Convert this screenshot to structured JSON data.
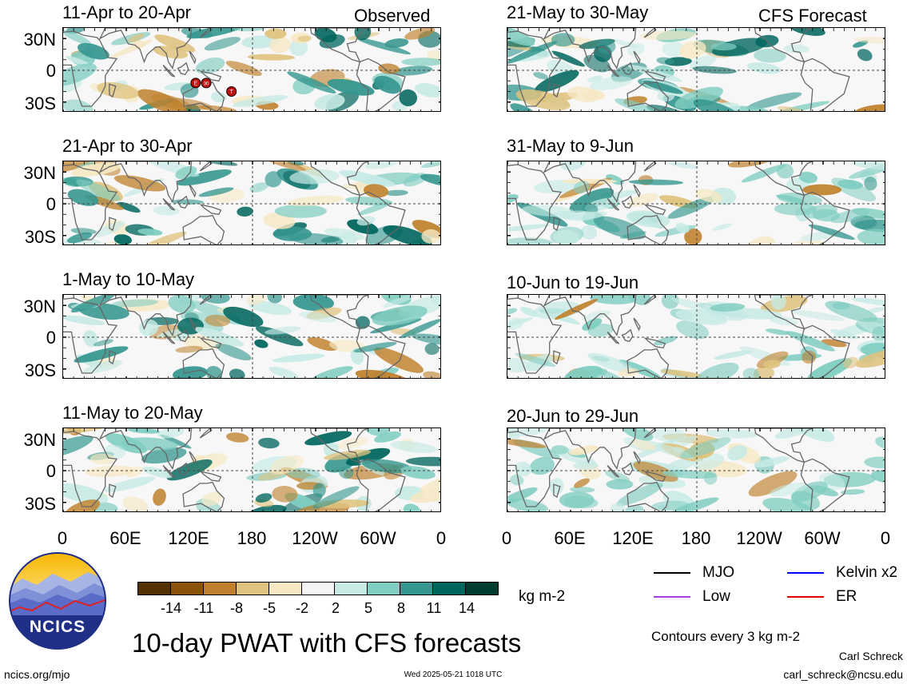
{
  "header": {
    "observed_label": "Observed",
    "forecast_label": "CFS Forecast"
  },
  "panels": [
    {
      "title": "11-Apr to 20-Apr",
      "column": "observed"
    },
    {
      "title": "21-Apr to 30-Apr",
      "column": "observed"
    },
    {
      "title": "1-May to 10-May",
      "column": "observed"
    },
    {
      "title": "11-May to 20-May",
      "column": "observed"
    },
    {
      "title": "21-May to 30-May",
      "column": "forecast"
    },
    {
      "title": "31-May to 9-Jun",
      "column": "forecast"
    },
    {
      "title": "10-Jun to 19-Jun",
      "column": "forecast"
    },
    {
      "title": "20-Jun to 29-Jun",
      "column": "forecast"
    }
  ],
  "axes": {
    "lat_labels": [
      "30N",
      "0",
      "30S"
    ],
    "lon_labels": [
      "0",
      "60E",
      "120E",
      "180",
      "120W",
      "60W",
      "0"
    ]
  },
  "markers": [
    "E",
    "30",
    "T"
  ],
  "colorbar": {
    "colors": [
      "#543005",
      "#8c510a",
      "#bf812d",
      "#dfc27d",
      "#f6e8c3",
      "#f5f5f5",
      "#c7eae5",
      "#80cdc1",
      "#35978f",
      "#01665e",
      "#003c30"
    ],
    "labels": [
      "-14",
      "-11",
      "-8",
      "-5",
      "-2",
      "2",
      "5",
      "8",
      "11",
      "14"
    ],
    "units": "kg m-2"
  },
  "legend": [
    {
      "label": "MJO",
      "color": "#000000"
    },
    {
      "label": "Kelvin x2",
      "color": "#0000ff"
    },
    {
      "label": "Low",
      "color": "#a040e0"
    },
    {
      "label": "ER",
      "color": "#e00000"
    }
  ],
  "contours_note": "Contours every 3 kg m-2",
  "main_title": "10-day PWAT with CFS forecasts",
  "logo_text": "NCICS",
  "footer": {
    "site": "ncics.org/mjo",
    "timestamp": "Wed 2025-05-21 1018 UTC",
    "author": "Carl Schreck",
    "email": "carl_schreck@ncsu.edu"
  }
}
